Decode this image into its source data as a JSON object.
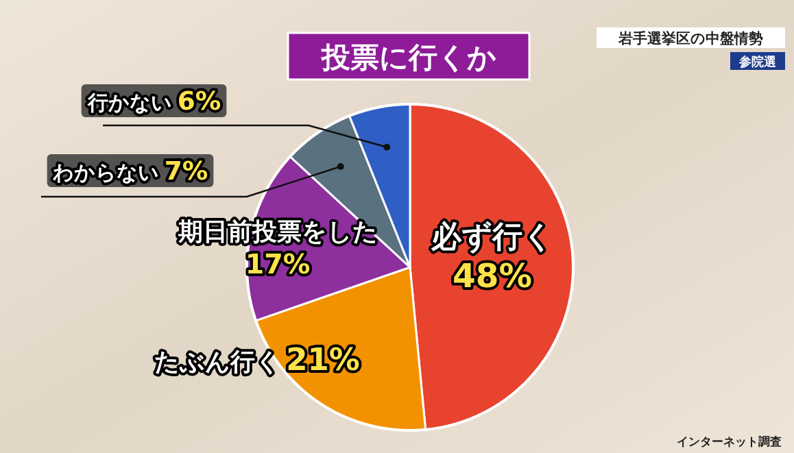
{
  "chart_data": {
    "type": "pie",
    "title": "投票に行くか",
    "subtitle": "岩手選挙区の中盤情勢",
    "categories": [
      "必ず行く",
      "たぶん行く",
      "期日前投票をした",
      "わからない",
      "行かない"
    ],
    "values": [
      48,
      21,
      17,
      7,
      6
    ],
    "value_labels": [
      "48%",
      "21%",
      "17%",
      "7%",
      "6%"
    ],
    "colors": [
      "#e8432f",
      "#f39200",
      "#8e2f9e",
      "#5a7280",
      "#2f5fc4"
    ],
    "annotations": [
      "参院選",
      "インターネット調査"
    ]
  }
}
